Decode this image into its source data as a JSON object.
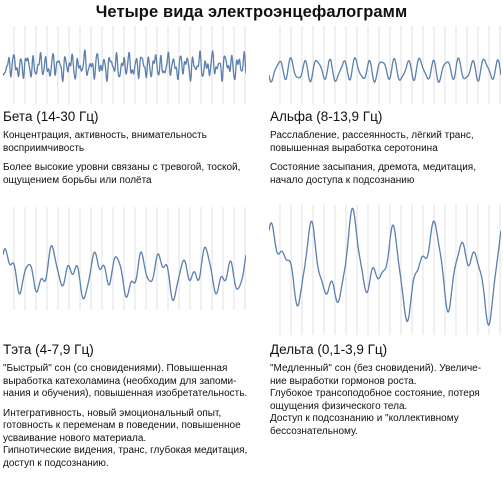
{
  "title": "Четыре вида электроэнцефалограмм",
  "colors": {
    "wave": "#5b7fae",
    "grid": "#e1e1e1",
    "text": "#111111"
  },
  "panels": [
    {
      "id": "beta",
      "name": "Бета (14-30 Гц)",
      "paragraphs": [
        [
          "Концентрация, активность, внимательность",
          "восприимчивость"
        ],
        [
          "Более высокие уровни связаны с тревогой, тоской,",
          "ощущением борьбы или полёта"
        ]
      ]
    },
    {
      "id": "alpha",
      "name": "Альфа (8-13,9 Гц)",
      "paragraphs": [
        [
          "Расслабление, рассеянность, лёгкий транс,",
          "повышенная выработка серотонина"
        ],
        [
          "Состояние засыпания, дремота, медитация,",
          "начало доступа к подсознанию"
        ]
      ]
    },
    {
      "id": "theta",
      "name": "Тэта (4-7,9 Гц)",
      "paragraphs": [
        [
          "\"Быстрый\" сон (со сновидениями). Повышенная",
          "выработка катехоламина (необходим для запоми-",
          "нания и обучения), повышенная изобретательность."
        ],
        [
          "Интегративность, новый эмоциональный опыт,",
          "готовность к переменам в поведении, повышенное",
          "усваивание нового материала.",
          "Гипнотические видения, транс, глубокая медитация,",
          "доступ к подсознанию."
        ]
      ]
    },
    {
      "id": "delta",
      "name": "Дельта (0,1-3,9 Гц)",
      "paragraphs": [
        [
          "\"Медленный\" сон (без сновидений). Увеличе-",
          "ние выработки гормонов роста.",
          "Глубокое трансоподобное состояние, потеря",
          "ощущения физического тела.",
          "Доступ к подсознанию и \"коллективному",
          "бессознательному."
        ]
      ]
    }
  ]
}
